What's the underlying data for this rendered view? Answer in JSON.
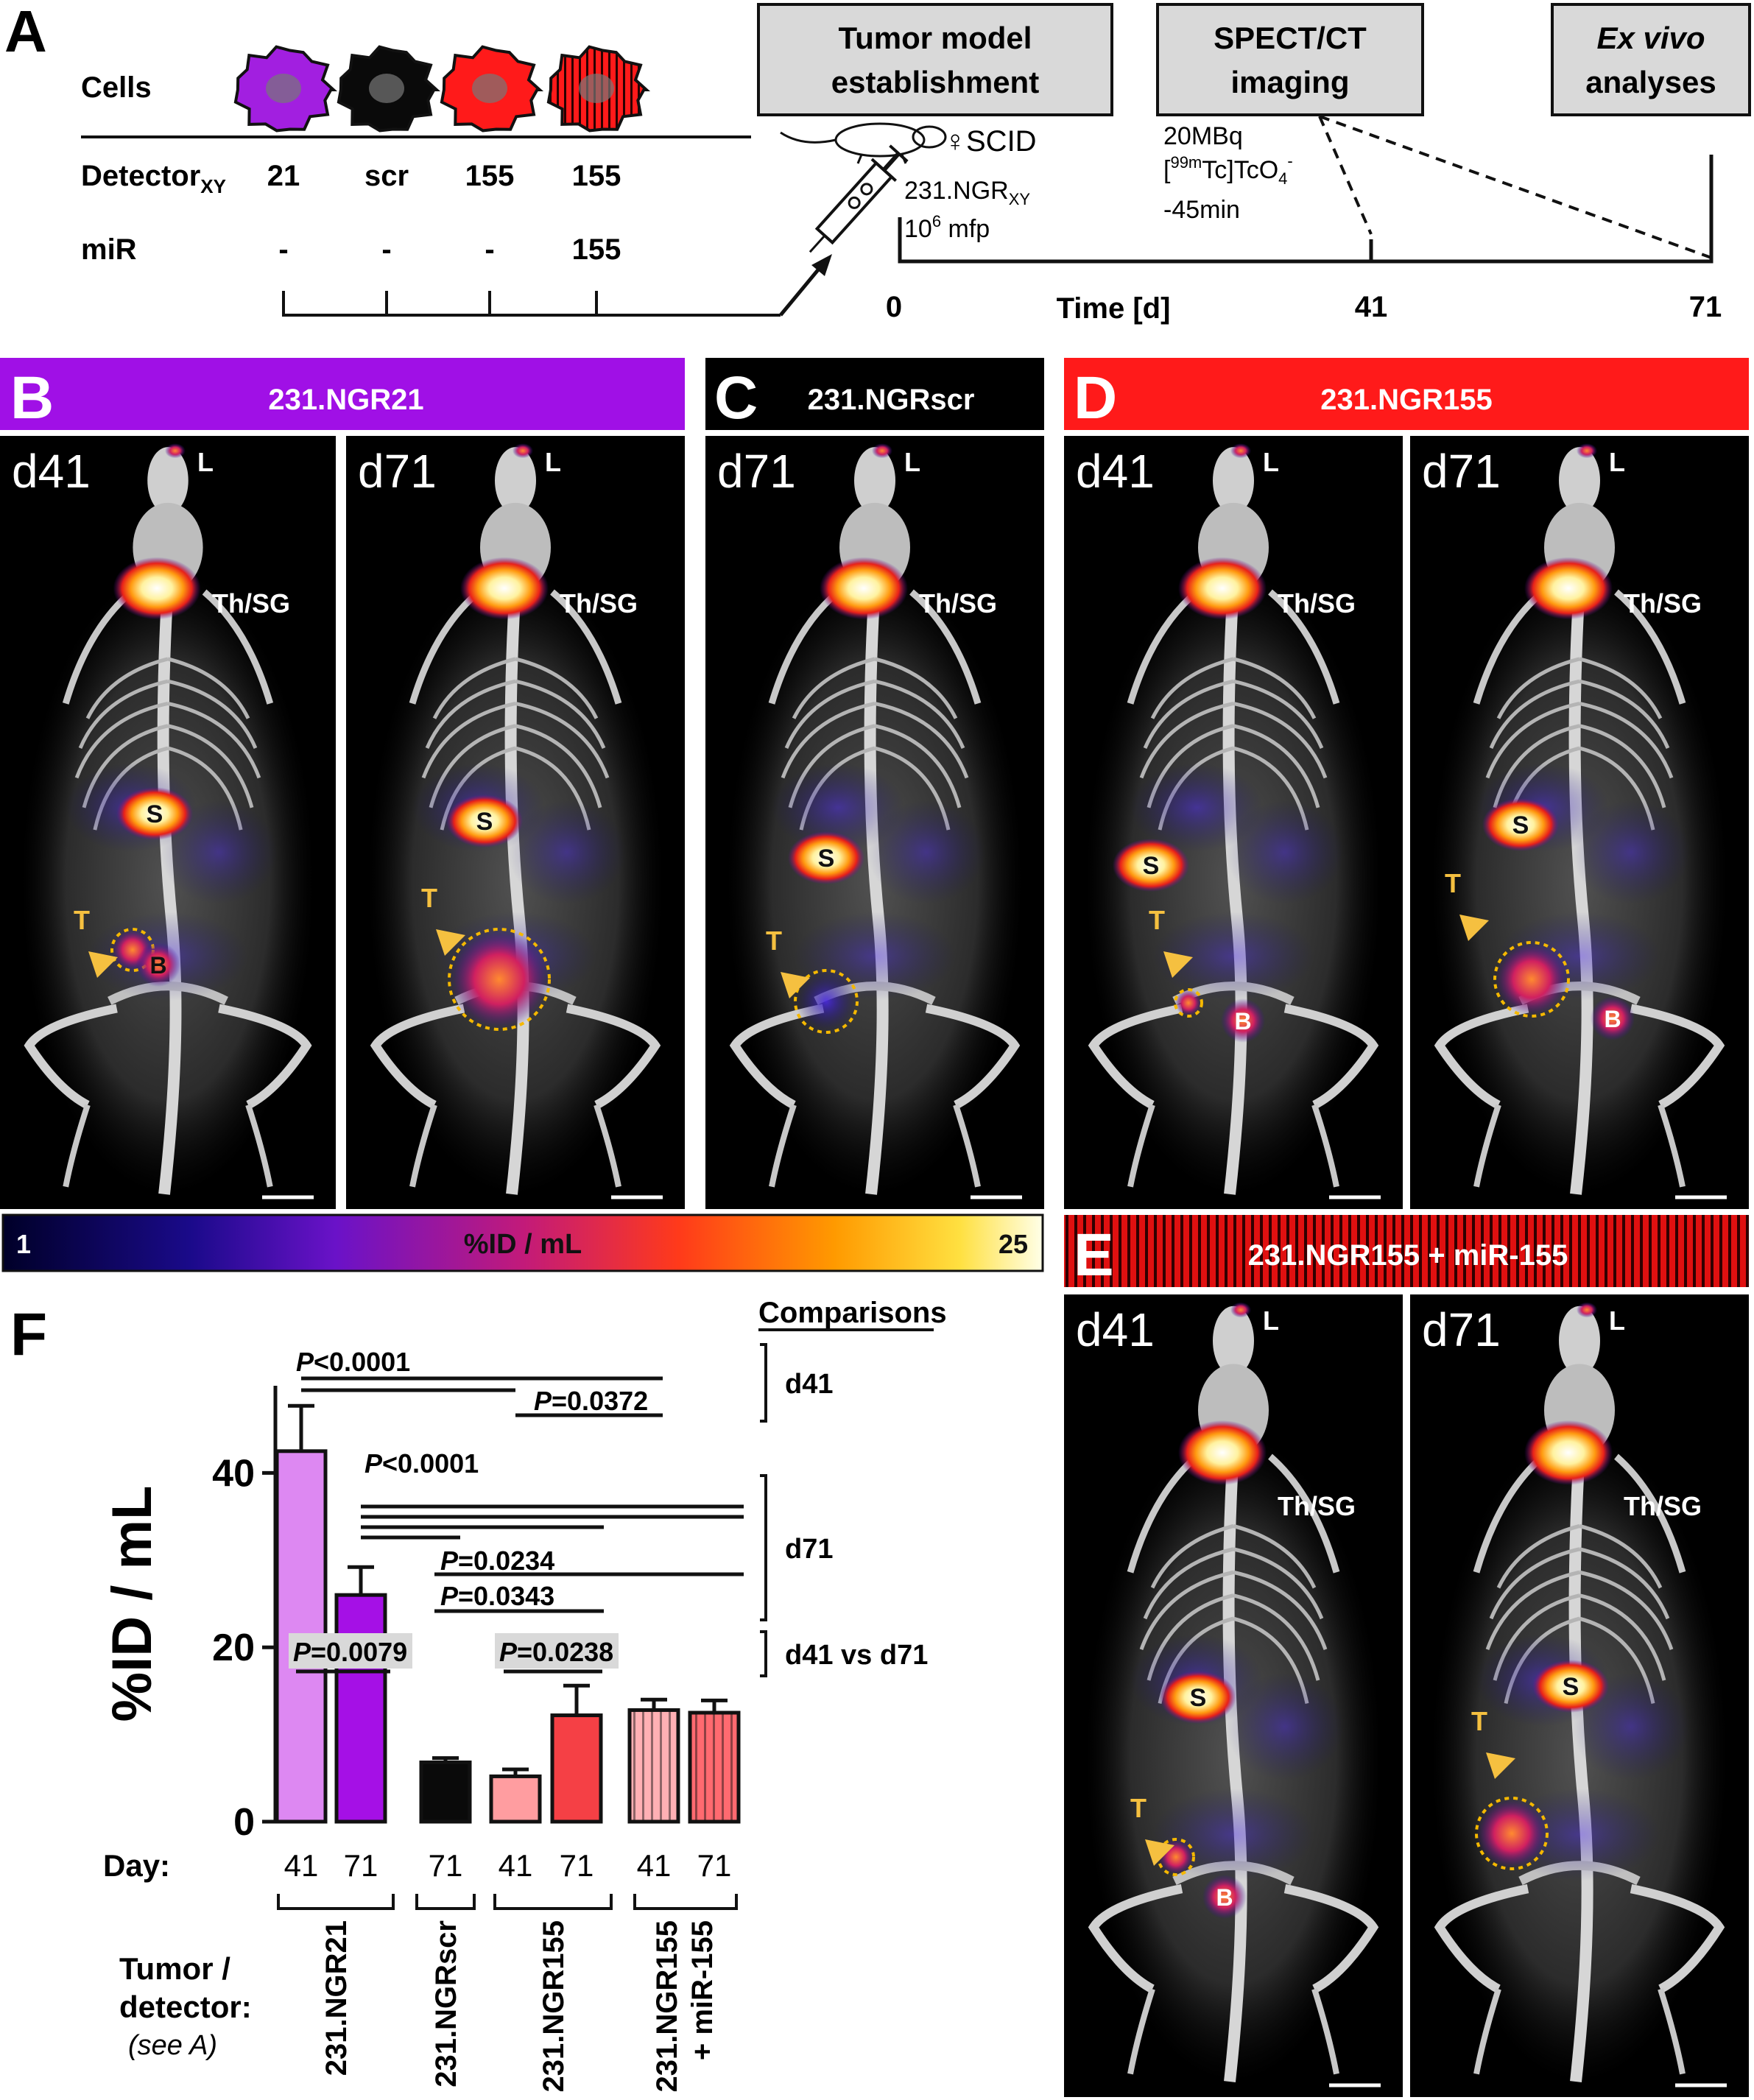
{
  "panel_letters": {
    "a": "A",
    "b": "B",
    "c": "C",
    "d": "D",
    "e": "E",
    "f": "F"
  },
  "panel_a": {
    "cells_label": "Cells",
    "detector_label": "Detector",
    "detector_sub": "XY",
    "mir_label": "miR",
    "detectors": [
      "21",
      "scr",
      "155",
      "155"
    ],
    "mirs": [
      "-",
      "-",
      "-",
      "155"
    ],
    "cell_colors": [
      "#a21fe0",
      "#0a0a0a",
      "#ff1a1a",
      "#e01010"
    ],
    "boxes": {
      "tumor_line1": "Tumor model",
      "tumor_line2": "establishment",
      "spect_line1": "SPECT/CT",
      "spect_line2": "imaging",
      "exvivo_line1": "Ex vivo",
      "exvivo_line2": "analyses"
    },
    "mouse_label": "♀SCID",
    "injection_line1": "231.NGR",
    "injection_line1_sub": "XY",
    "injection_line2_pre": "10",
    "injection_line2_sup": "6",
    "injection_line2_post": " mfp",
    "tracer_line1": "20MBq",
    "tracer_line2_pre": "[",
    "tracer_line2_sup": "99m",
    "tracer_line2_mid": "Tc]TcO",
    "tracer_line2_sub": "4",
    "tracer_line2_sup2": "-",
    "tracer_line3": "-45min",
    "time_ticks": [
      "0",
      "41",
      "71"
    ],
    "time_label": "Time [d]"
  },
  "panels": {
    "b_title": "231.NGR21",
    "c_title": "231.NGRscr",
    "d_title": "231.NGR155",
    "e_title": "231.NGR155 + miR-155",
    "header_colors": {
      "b": "#a010e6",
      "c": "#000000",
      "d": "#ff1a1a",
      "e": "#d81010"
    },
    "image_labels": {
      "d41": "d41",
      "d71": "d71",
      "L": "L",
      "ThSG": "Th/SG",
      "S": "S",
      "T": "T",
      "B": "B"
    }
  },
  "colorbar": {
    "min_label": "1",
    "max_label": "25",
    "label": "%ID / mL"
  },
  "chart_data": {
    "type": "bar",
    "ylabel": "%ID / mL",
    "ylim": [
      0,
      50
    ],
    "yticks": [
      0,
      20,
      40
    ],
    "day_label": "Day:",
    "tumor_label_1": "Tumor /",
    "tumor_label_2": "detector:",
    "tumor_label_3": "(see A)",
    "categories": [
      "41",
      "71",
      "71",
      "41",
      "71",
      "41",
      "71"
    ],
    "groups": [
      {
        "name": "231.NGR21",
        "bars": [
          0,
          1
        ]
      },
      {
        "name": "231.NGRscr",
        "bars": [
          2
        ]
      },
      {
        "name": "231.NGR155",
        "bars": [
          3,
          4
        ]
      },
      {
        "name": "231.NGR155",
        "name2": "+ miR-155",
        "bars": [
          5,
          6
        ]
      }
    ],
    "values": [
      42.5,
      26,
      6.8,
      5.2,
      12.2,
      12.8,
      12.5
    ],
    "errors": [
      5.2,
      3.2,
      0.5,
      0.8,
      3.4,
      1.2,
      1.4
    ],
    "colors": [
      "#dd88f2",
      "#a510e6",
      "#0a0a0a",
      "#ff9da0",
      "#f54045",
      "#ffb0b4",
      "#ff6a70"
    ],
    "striped": [
      false,
      false,
      false,
      false,
      false,
      true,
      true
    ],
    "comparisons_title": "Comparisons",
    "bracket_labels": [
      "d41",
      "d71",
      "d41 vs d71"
    ],
    "pvalues": {
      "d41_a": "<0.0001",
      "d41_b": "=0.0372",
      "d71_a": "<0.0001",
      "d71_b": "=0.0234",
      "d71_c": "=0.0343",
      "dvs_a": "=0.0079",
      "dvs_b": "=0.0238"
    },
    "p_letter": "P"
  }
}
